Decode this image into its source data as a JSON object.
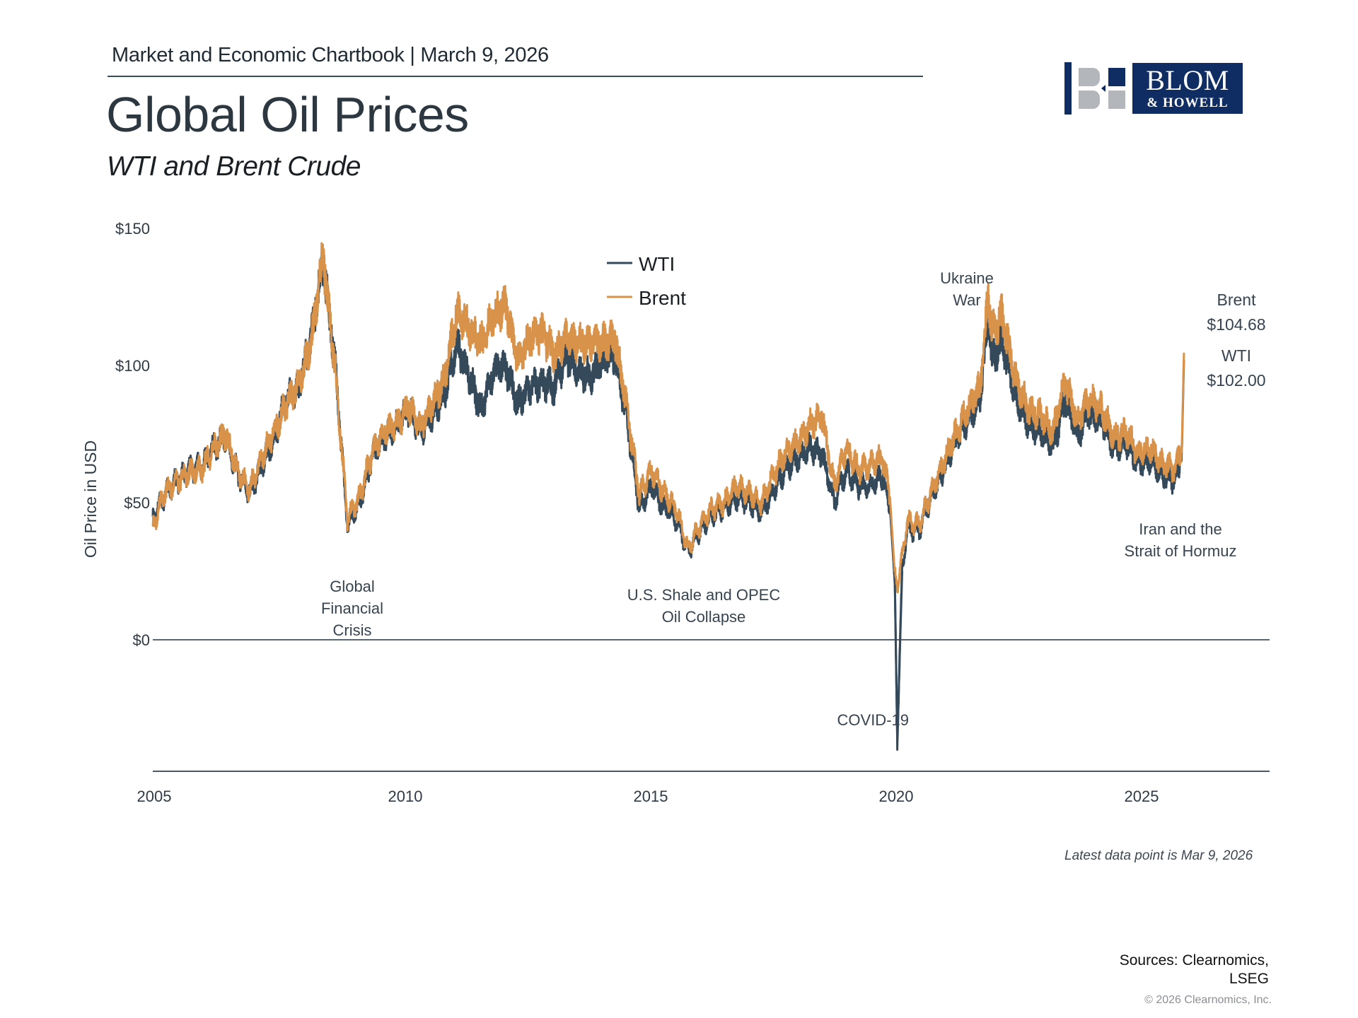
{
  "header": {
    "kicker": "Market and Economic Chartbook | March 9, 2026",
    "title": "Global Oil Prices",
    "subtitle": "WTI and Brent Crude"
  },
  "logo": {
    "line1": "BLOM",
    "line2": "& HOWELL",
    "brand_color": "#0f2d62",
    "accent_gray": "#b3b6bb"
  },
  "footer": {
    "latest_note": "Latest data point is Mar 9, 2026",
    "sources_line1": "Sources: Clearnomics,",
    "sources_line2": "LSEG",
    "copyright": "© 2026 Clearnomics, Inc."
  },
  "chart_data": {
    "type": "line",
    "title": "Global Oil Prices",
    "subtitle": "WTI and Brent Crude",
    "xlabel": "",
    "ylabel": "Oil Price in USD",
    "xlim": [
      2005.0,
      2027.6
    ],
    "ylim": [
      -48,
      150
    ],
    "x_ticks": [
      2005,
      2010,
      2015,
      2020,
      2025
    ],
    "x_tick_labels": [
      "2005",
      "2010",
      "2015",
      "2020",
      "2025"
    ],
    "y_ticks": [
      0,
      50,
      100,
      150
    ],
    "y_tick_labels": [
      "$0",
      "$50",
      "$100",
      "$150"
    ],
    "grid": false,
    "zero_line": true,
    "legend": {
      "position": "top-center",
      "entries": [
        "WTI",
        "Brent"
      ]
    },
    "colors": {
      "WTI": "#34495a",
      "Brent": "#d8924a"
    },
    "x": [
      2005.0,
      2005.25,
      2005.5,
      2005.75,
      2006.0,
      2006.25,
      2006.5,
      2006.75,
      2007.0,
      2007.25,
      2007.5,
      2007.75,
      2008.0,
      2008.25,
      2008.5,
      2008.75,
      2009.0,
      2009.25,
      2009.5,
      2009.75,
      2010.0,
      2010.25,
      2010.5,
      2010.75,
      2011.0,
      2011.25,
      2011.5,
      2011.75,
      2012.0,
      2012.25,
      2012.5,
      2012.75,
      2013.0,
      2013.25,
      2013.5,
      2013.75,
      2014.0,
      2014.25,
      2014.5,
      2014.75,
      2015.0,
      2015.25,
      2015.5,
      2015.75,
      2016.0,
      2016.25,
      2016.5,
      2016.75,
      2017.0,
      2017.25,
      2017.5,
      2017.75,
      2018.0,
      2018.25,
      2018.5,
      2018.75,
      2019.0,
      2019.25,
      2019.5,
      2019.75,
      2020.0,
      2020.15,
      2020.25,
      2020.3,
      2020.4,
      2020.5,
      2020.75,
      2021.0,
      2021.25,
      2021.5,
      2021.75,
      2022.0,
      2022.17,
      2022.25,
      2022.45,
      2022.75,
      2023.0,
      2023.25,
      2023.5,
      2023.75,
      2024.0,
      2024.25,
      2024.5,
      2024.75,
      2025.0,
      2025.25,
      2025.5,
      2025.75,
      2026.0,
      2026.1,
      2026.15,
      2026.19
    ],
    "series": [
      {
        "name": "WTI",
        "values": [
          44,
          53,
          58,
          62,
          63,
          70,
          74,
          60,
          54,
          64,
          74,
          88,
          92,
          110,
          138,
          100,
          42,
          50,
          66,
          74,
          78,
          84,
          76,
          82,
          90,
          108,
          96,
          84,
          98,
          100,
          86,
          92,
          94,
          92,
          104,
          98,
          96,
          102,
          104,
          80,
          48,
          56,
          48,
          44,
          32,
          40,
          45,
          48,
          52,
          50,
          46,
          54,
          62,
          66,
          70,
          68,
          50,
          62,
          56,
          56,
          60,
          48,
          20,
          -37,
          25,
          40,
          40,
          52,
          62,
          72,
          80,
          88,
          118,
          102,
          108,
          88,
          78,
          76,
          70,
          88,
          74,
          82,
          80,
          70,
          72,
          64,
          66,
          60,
          58,
          64,
          70,
          102.0
        ]
      },
      {
        "name": "Brent",
        "values": [
          41,
          54,
          58,
          61,
          62,
          70,
          75,
          61,
          55,
          67,
          76,
          86,
          93,
          108,
          140,
          98,
          44,
          52,
          68,
          76,
          78,
          85,
          77,
          86,
          96,
          120,
          114,
          108,
          118,
          122,
          102,
          110,
          112,
          104,
          110,
          108,
          108,
          108,
          110,
          84,
          53,
          62,
          54,
          48,
          33,
          42,
          48,
          50,
          56,
          54,
          50,
          60,
          68,
          72,
          78,
          82,
          56,
          70,
          62,
          64,
          66,
          52,
          24,
          20,
          30,
          43,
          42,
          54,
          65,
          75,
          84,
          92,
          126,
          112,
          118,
          94,
          84,
          82,
          76,
          94,
          80,
          88,
          84,
          74,
          76,
          68,
          70,
          64,
          62,
          68,
          72,
          104.68
        ]
      }
    ],
    "annotations": [
      {
        "text": [
          "Global",
          "Financial",
          "Crisis"
        ],
        "near": 2009.0
      },
      {
        "text": [
          "U.S. Shale and OPEC",
          "Oil Collapse"
        ],
        "near": 2016.0
      },
      {
        "text": [
          "COVID-19"
        ],
        "near": 2020.3
      },
      {
        "text": [
          "Ukraine",
          "War"
        ],
        "near": 2022.1
      },
      {
        "text": [
          "Iran and the",
          "Strait of Hormuz"
        ],
        "near": 2025.2
      }
    ],
    "end_labels": [
      {
        "series": "Brent",
        "label": "Brent",
        "value_label": "$104.68",
        "value": 104.68
      },
      {
        "series": "WTI",
        "label": "WTI",
        "value_label": "$102.00",
        "value": 102.0
      }
    ],
    "note": "Latest data point is Mar 9, 2026"
  }
}
